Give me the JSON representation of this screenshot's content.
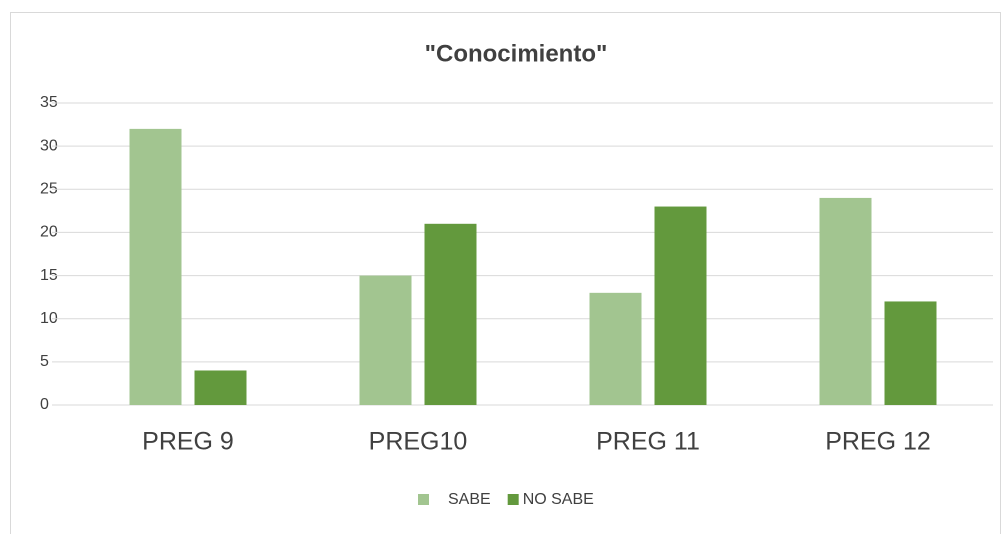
{
  "chart_data": {
    "type": "bar",
    "title": "\"Conocimiento\"",
    "categories": [
      "PREG 9",
      "PREG10",
      "PREG 11",
      "PREG 12"
    ],
    "series": [
      {
        "name": "SABE",
        "color": "#a2c590",
        "values": [
          32,
          15,
          13,
          24
        ]
      },
      {
        "name": "NO SABE",
        "color": "#63993d",
        "values": [
          4,
          21,
          23,
          12
        ]
      }
    ],
    "ylim": [
      0,
      35
    ],
    "yticks": [
      0,
      5,
      10,
      15,
      20,
      25,
      30,
      35
    ],
    "grid": true,
    "legend": "bottom"
  }
}
